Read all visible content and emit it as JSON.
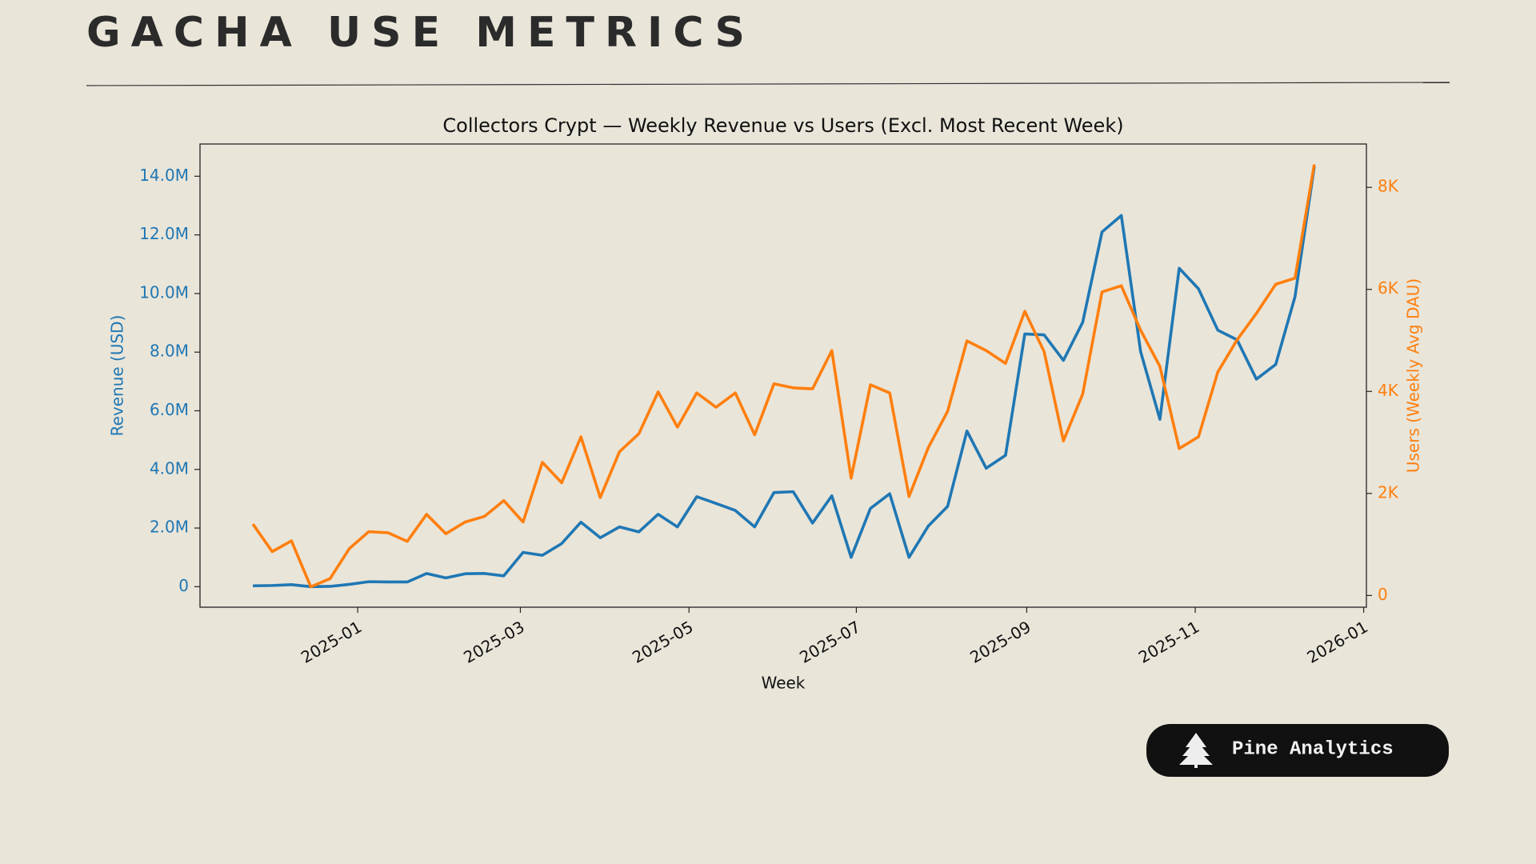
{
  "header": {
    "title": "GACHA USE METRICS"
  },
  "chart_data": {
    "type": "line",
    "title": "Collectors Crypt — Weekly Revenue vs Users (Excl. Most Recent Week)",
    "xlabel": "Week",
    "ylabel": "Revenue (USD)",
    "y2label": "Users (Weekly Avg DAU)",
    "categories": [
      null,
      null,
      null,
      null,
      null,
      null,
      null,
      null,
      null,
      null,
      null,
      null,
      null,
      null,
      null,
      null,
      null,
      null,
      null,
      null,
      null,
      null,
      null,
      null,
      null,
      null,
      null,
      null,
      null,
      null,
      null,
      null,
      null,
      null,
      null,
      null,
      null,
      null,
      null,
      null,
      null,
      null,
      null,
      null,
      null,
      null,
      null,
      null,
      null,
      null,
      null,
      null,
      null,
      null,
      null,
      null
    ],
    "xlim": [
      -2.74,
      57.7
    ],
    "xticks": [
      {
        "value": 5.43,
        "label": "2025-01"
      },
      {
        "value": 13.86,
        "label": "2025-03"
      },
      {
        "value": 22.6,
        "label": "2025-05"
      },
      {
        "value": 31.27,
        "label": "2025-07"
      },
      {
        "value": 40.1,
        "label": "2025-09"
      },
      {
        "value": 48.83,
        "label": "2025-11"
      },
      {
        "value": 57.56,
        "label": "2026-01"
      }
    ],
    "ylim": [
      -700000,
      15100000
    ],
    "yticks": [
      0,
      {
        "value": 2000000,
        "label": "2.0M"
      },
      {
        "value": 4000000,
        "label": "4.0M"
      },
      {
        "value": 6000000,
        "label": "6.0M"
      },
      {
        "value": 8000000,
        "label": "8.0M"
      },
      {
        "value": 10000000,
        "label": "10.0M"
      },
      {
        "value": 12000000,
        "label": "12.0M"
      },
      {
        "value": 14000000,
        "label": "14.0M"
      }
    ],
    "y2lim": [
      -230,
      8850
    ],
    "y2ticks": [
      0,
      {
        "value": 2000,
        "label": "2K"
      },
      {
        "value": 4000,
        "label": "4K"
      },
      {
        "value": 6000,
        "label": "6K"
      },
      {
        "value": 8000,
        "label": "8K"
      }
    ],
    "series": [
      {
        "color": "#1f77b4",
        "axis": "y",
        "values": [
          30000,
          40000,
          70000,
          0,
          10000,
          80000,
          170000,
          160000,
          160000,
          450000,
          300000,
          440000,
          450000,
          370000,
          1170000,
          1070000,
          1470000,
          2200000,
          1670000,
          2040000,
          1870000,
          2470000,
          2040000,
          3070000,
          2840000,
          2600000,
          2040000,
          3210000,
          3240000,
          2170000,
          3100000,
          1000000,
          2670000,
          3170000,
          1000000,
          2070000,
          2740000,
          5310000,
          4040000,
          4480000,
          8620000,
          8590000,
          7720000,
          9020000,
          12100000,
          12660000,
          8020000,
          5710000,
          10860000,
          10160000,
          8750000,
          8420000,
          7080000,
          7580000,
          9890000,
          14330000
        ]
      },
      {
        "color": "#ff7f0e",
        "axis": "y2",
        "values": [
          1400,
          860,
          1070,
          170,
          330,
          920,
          1250,
          1230,
          1060,
          1590,
          1210,
          1440,
          1550,
          1860,
          1440,
          2610,
          2210,
          3110,
          1920,
          2820,
          3170,
          3990,
          3300,
          3970,
          3690,
          3970,
          3150,
          4150,
          4070,
          4050,
          4800,
          2300,
          4130,
          3970,
          1940,
          2900,
          3610,
          4990,
          4800,
          4550,
          5570,
          4780,
          3030,
          3950,
          5950,
          6070,
          5200,
          4490,
          2880,
          3110,
          4380,
          5010,
          5530,
          6100,
          6220,
          8450
        ]
      }
    ]
  },
  "badge": {
    "text": "Pine Analytics"
  }
}
